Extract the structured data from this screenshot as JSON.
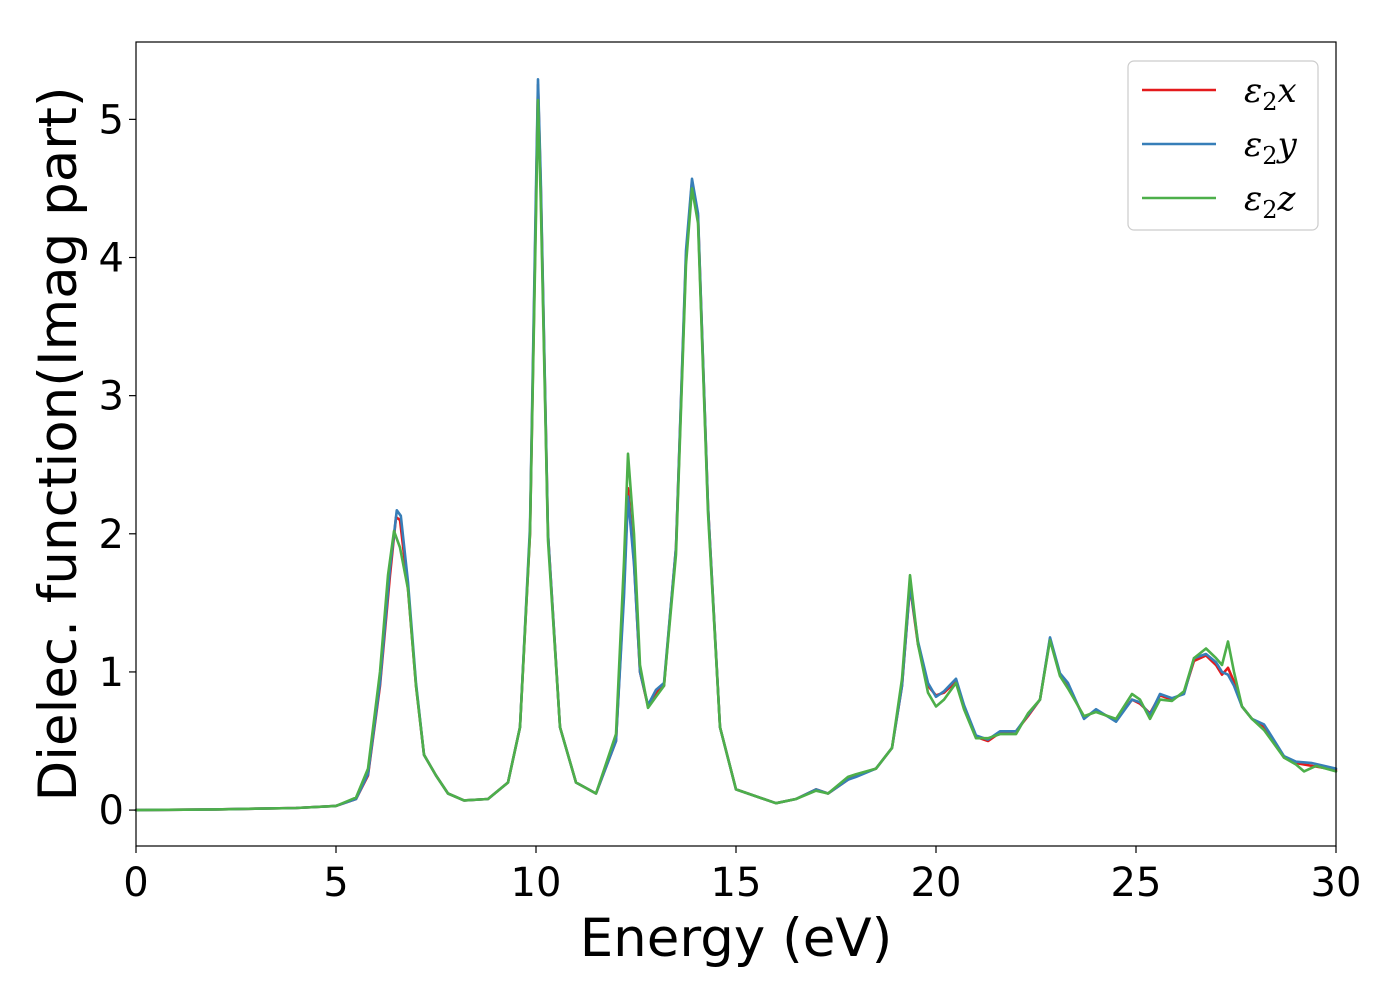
{
  "chart_data": {
    "type": "line",
    "title": "",
    "xlabel": "Energy (eV)",
    "ylabel": "Dielec. function(Imag part)",
    "xlim": [
      0,
      30
    ],
    "ylim": [
      -0.26,
      5.56
    ],
    "xticks": [
      0,
      5,
      10,
      15,
      20,
      25,
      30
    ],
    "yticks": [
      0,
      1,
      2,
      3,
      4,
      5
    ],
    "grid": false,
    "legend_position": "upper-right",
    "series": [
      {
        "name": "ε₂x",
        "legend_base": "ε",
        "legend_sub": "2",
        "legend_var": "x",
        "color": "#e41a1c",
        "points": [
          [
            0,
            0.0
          ],
          [
            2,
            0.005
          ],
          [
            4,
            0.015
          ],
          [
            5,
            0.03
          ],
          [
            5.5,
            0.08
          ],
          [
            5.8,
            0.25
          ],
          [
            6.1,
            0.9
          ],
          [
            6.35,
            1.7
          ],
          [
            6.5,
            2.12
          ],
          [
            6.6,
            2.1
          ],
          [
            6.8,
            1.6
          ],
          [
            7.0,
            0.9
          ],
          [
            7.2,
            0.4
          ],
          [
            7.5,
            0.25
          ],
          [
            7.8,
            0.12
          ],
          [
            8.2,
            0.07
          ],
          [
            8.8,
            0.08
          ],
          [
            9.3,
            0.2
          ],
          [
            9.6,
            0.6
          ],
          [
            9.85,
            2.0
          ],
          [
            10.0,
            4.4
          ],
          [
            10.05,
            5.25
          ],
          [
            10.12,
            4.5
          ],
          [
            10.3,
            2.0
          ],
          [
            10.6,
            0.6
          ],
          [
            11.0,
            0.2
          ],
          [
            11.5,
            0.12
          ],
          [
            12.0,
            0.5
          ],
          [
            12.2,
            1.6
          ],
          [
            12.3,
            2.33
          ],
          [
            12.45,
            1.8
          ],
          [
            12.6,
            1.0
          ],
          [
            12.8,
            0.75
          ],
          [
            13.0,
            0.85
          ],
          [
            13.2,
            0.9
          ],
          [
            13.5,
            1.9
          ],
          [
            13.75,
            4.0
          ],
          [
            13.9,
            4.55
          ],
          [
            14.05,
            4.3
          ],
          [
            14.3,
            2.2
          ],
          [
            14.6,
            0.6
          ],
          [
            15.0,
            0.15
          ],
          [
            16.0,
            0.05
          ],
          [
            16.5,
            0.08
          ],
          [
            17.0,
            0.15
          ],
          [
            17.3,
            0.12
          ],
          [
            17.8,
            0.22
          ],
          [
            18.0,
            0.25
          ],
          [
            18.5,
            0.3
          ],
          [
            18.9,
            0.45
          ],
          [
            19.15,
            0.9
          ],
          [
            19.35,
            1.62
          ],
          [
            19.55,
            1.2
          ],
          [
            19.8,
            0.9
          ],
          [
            20.0,
            0.83
          ],
          [
            20.2,
            0.85
          ],
          [
            20.5,
            0.93
          ],
          [
            20.7,
            0.75
          ],
          [
            21.0,
            0.53
          ],
          [
            21.3,
            0.5
          ],
          [
            21.6,
            0.56
          ],
          [
            22.0,
            0.57
          ],
          [
            22.3,
            0.68
          ],
          [
            22.6,
            0.8
          ],
          [
            22.85,
            1.24
          ],
          [
            23.1,
            0.98
          ],
          [
            23.3,
            0.9
          ],
          [
            23.7,
            0.67
          ],
          [
            24.0,
            0.72
          ],
          [
            24.5,
            0.65
          ],
          [
            24.9,
            0.8
          ],
          [
            25.1,
            0.77
          ],
          [
            25.35,
            0.7
          ],
          [
            25.6,
            0.83
          ],
          [
            25.9,
            0.8
          ],
          [
            26.2,
            0.85
          ],
          [
            26.45,
            1.08
          ],
          [
            26.75,
            1.12
          ],
          [
            27.0,
            1.05
          ],
          [
            27.15,
            0.98
          ],
          [
            27.3,
            1.03
          ],
          [
            27.45,
            0.93
          ],
          [
            27.65,
            0.75
          ],
          [
            27.9,
            0.66
          ],
          [
            28.2,
            0.6
          ],
          [
            28.4,
            0.52
          ],
          [
            28.7,
            0.38
          ],
          [
            29.0,
            0.34
          ],
          [
            29.4,
            0.32
          ],
          [
            30.0,
            0.29
          ]
        ]
      },
      {
        "name": "ε₂y",
        "legend_base": "ε",
        "legend_sub": "2",
        "legend_var": "y",
        "color": "#377eb8",
        "points": [
          [
            0,
            0.0
          ],
          [
            2,
            0.005
          ],
          [
            4,
            0.015
          ],
          [
            5,
            0.03
          ],
          [
            5.5,
            0.08
          ],
          [
            5.8,
            0.26
          ],
          [
            6.1,
            0.92
          ],
          [
            6.35,
            1.75
          ],
          [
            6.52,
            2.17
          ],
          [
            6.62,
            2.13
          ],
          [
            6.8,
            1.65
          ],
          [
            7.0,
            0.92
          ],
          [
            7.2,
            0.4
          ],
          [
            7.5,
            0.25
          ],
          [
            7.8,
            0.12
          ],
          [
            8.2,
            0.07
          ],
          [
            8.8,
            0.08
          ],
          [
            9.3,
            0.2
          ],
          [
            9.6,
            0.6
          ],
          [
            9.85,
            2.05
          ],
          [
            10.0,
            4.5
          ],
          [
            10.05,
            5.29
          ],
          [
            10.12,
            4.55
          ],
          [
            10.3,
            2.0
          ],
          [
            10.6,
            0.6
          ],
          [
            11.0,
            0.2
          ],
          [
            11.5,
            0.12
          ],
          [
            12.0,
            0.5
          ],
          [
            12.2,
            1.55
          ],
          [
            12.3,
            2.27
          ],
          [
            12.45,
            1.78
          ],
          [
            12.6,
            1.0
          ],
          [
            12.8,
            0.76
          ],
          [
            13.0,
            0.87
          ],
          [
            13.2,
            0.92
          ],
          [
            13.5,
            1.9
          ],
          [
            13.75,
            4.05
          ],
          [
            13.9,
            4.57
          ],
          [
            14.05,
            4.32
          ],
          [
            14.3,
            2.2
          ],
          [
            14.6,
            0.6
          ],
          [
            15.0,
            0.15
          ],
          [
            16.0,
            0.05
          ],
          [
            16.5,
            0.08
          ],
          [
            17.0,
            0.15
          ],
          [
            17.3,
            0.12
          ],
          [
            17.8,
            0.22
          ],
          [
            18.0,
            0.24
          ],
          [
            18.5,
            0.3
          ],
          [
            18.9,
            0.45
          ],
          [
            19.15,
            0.9
          ],
          [
            19.35,
            1.63
          ],
          [
            19.55,
            1.22
          ],
          [
            19.8,
            0.92
          ],
          [
            20.0,
            0.82
          ],
          [
            20.2,
            0.86
          ],
          [
            20.5,
            0.95
          ],
          [
            20.7,
            0.76
          ],
          [
            21.0,
            0.54
          ],
          [
            21.3,
            0.51
          ],
          [
            21.6,
            0.57
          ],
          [
            22.0,
            0.57
          ],
          [
            22.3,
            0.69
          ],
          [
            22.6,
            0.8
          ],
          [
            22.85,
            1.25
          ],
          [
            23.1,
            0.99
          ],
          [
            23.3,
            0.92
          ],
          [
            23.7,
            0.66
          ],
          [
            24.0,
            0.73
          ],
          [
            24.5,
            0.64
          ],
          [
            24.9,
            0.8
          ],
          [
            25.1,
            0.78
          ],
          [
            25.35,
            0.69
          ],
          [
            25.6,
            0.84
          ],
          [
            25.9,
            0.81
          ],
          [
            26.2,
            0.84
          ],
          [
            26.45,
            1.1
          ],
          [
            26.75,
            1.13
          ],
          [
            27.0,
            1.07
          ],
          [
            27.15,
            1.0
          ],
          [
            27.3,
            0.98
          ],
          [
            27.45,
            0.9
          ],
          [
            27.65,
            0.75
          ],
          [
            27.9,
            0.66
          ],
          [
            28.2,
            0.62
          ],
          [
            28.4,
            0.53
          ],
          [
            28.7,
            0.39
          ],
          [
            29.0,
            0.35
          ],
          [
            29.4,
            0.34
          ],
          [
            30.0,
            0.3
          ]
        ]
      },
      {
        "name": "ε₂z",
        "legend_base": "ε",
        "legend_sub": "2",
        "legend_var": "z",
        "color": "#4daf4a",
        "points": [
          [
            0,
            0.0
          ],
          [
            2,
            0.005
          ],
          [
            4,
            0.015
          ],
          [
            5,
            0.03
          ],
          [
            5.5,
            0.09
          ],
          [
            5.8,
            0.3
          ],
          [
            6.1,
            1.0
          ],
          [
            6.3,
            1.7
          ],
          [
            6.45,
            2.02
          ],
          [
            6.6,
            1.9
          ],
          [
            6.8,
            1.6
          ],
          [
            7.0,
            0.9
          ],
          [
            7.2,
            0.4
          ],
          [
            7.5,
            0.25
          ],
          [
            7.8,
            0.12
          ],
          [
            8.2,
            0.07
          ],
          [
            8.8,
            0.08
          ],
          [
            9.3,
            0.2
          ],
          [
            9.6,
            0.6
          ],
          [
            9.85,
            2.0
          ],
          [
            10.0,
            4.3
          ],
          [
            10.05,
            5.14
          ],
          [
            10.12,
            4.4
          ],
          [
            10.3,
            1.95
          ],
          [
            10.6,
            0.6
          ],
          [
            11.0,
            0.2
          ],
          [
            11.5,
            0.12
          ],
          [
            12.0,
            0.55
          ],
          [
            12.2,
            1.8
          ],
          [
            12.3,
            2.58
          ],
          [
            12.45,
            2.0
          ],
          [
            12.6,
            1.05
          ],
          [
            12.8,
            0.74
          ],
          [
            13.0,
            0.82
          ],
          [
            13.2,
            0.9
          ],
          [
            13.5,
            1.85
          ],
          [
            13.75,
            3.95
          ],
          [
            13.9,
            4.5
          ],
          [
            14.05,
            4.25
          ],
          [
            14.3,
            2.15
          ],
          [
            14.6,
            0.6
          ],
          [
            15.0,
            0.15
          ],
          [
            16.0,
            0.05
          ],
          [
            16.5,
            0.08
          ],
          [
            17.0,
            0.14
          ],
          [
            17.3,
            0.12
          ],
          [
            17.8,
            0.24
          ],
          [
            18.0,
            0.26
          ],
          [
            18.5,
            0.3
          ],
          [
            18.9,
            0.45
          ],
          [
            19.15,
            0.95
          ],
          [
            19.35,
            1.7
          ],
          [
            19.55,
            1.2
          ],
          [
            19.8,
            0.85
          ],
          [
            20.0,
            0.75
          ],
          [
            20.2,
            0.8
          ],
          [
            20.5,
            0.92
          ],
          [
            20.7,
            0.73
          ],
          [
            21.0,
            0.52
          ],
          [
            21.3,
            0.52
          ],
          [
            21.6,
            0.55
          ],
          [
            22.0,
            0.55
          ],
          [
            22.3,
            0.7
          ],
          [
            22.6,
            0.8
          ],
          [
            22.85,
            1.23
          ],
          [
            23.1,
            0.97
          ],
          [
            23.3,
            0.88
          ],
          [
            23.7,
            0.68
          ],
          [
            24.0,
            0.71
          ],
          [
            24.5,
            0.66
          ],
          [
            24.9,
            0.84
          ],
          [
            25.1,
            0.8
          ],
          [
            25.35,
            0.66
          ],
          [
            25.6,
            0.8
          ],
          [
            25.9,
            0.79
          ],
          [
            26.2,
            0.86
          ],
          [
            26.45,
            1.1
          ],
          [
            26.75,
            1.17
          ],
          [
            27.0,
            1.1
          ],
          [
            27.15,
            1.05
          ],
          [
            27.3,
            1.22
          ],
          [
            27.45,
            1.0
          ],
          [
            27.65,
            0.75
          ],
          [
            27.9,
            0.66
          ],
          [
            28.2,
            0.58
          ],
          [
            28.4,
            0.5
          ],
          [
            28.7,
            0.38
          ],
          [
            29.0,
            0.33
          ],
          [
            29.2,
            0.28
          ],
          [
            29.5,
            0.32
          ],
          [
            30.0,
            0.28
          ]
        ]
      }
    ]
  }
}
